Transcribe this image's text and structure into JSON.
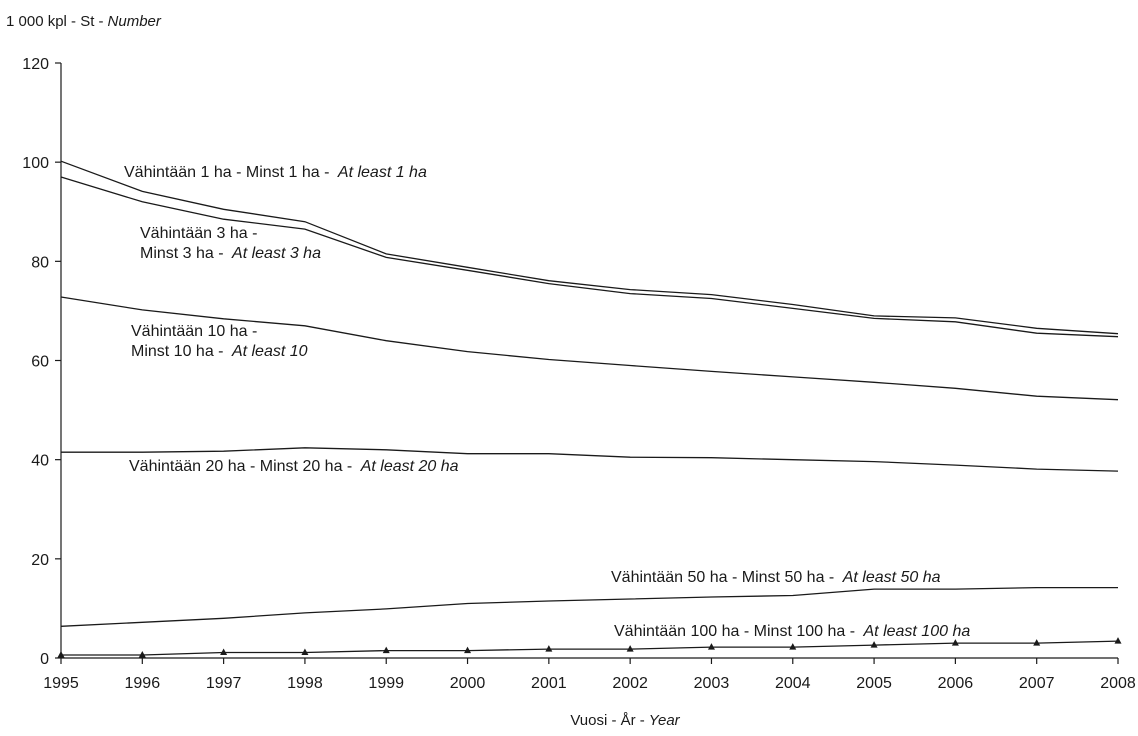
{
  "chart_data": {
    "type": "line",
    "ylabel": "1 000 kpl - St -",
    "ylabel_en": "Number",
    "xlabel": "Vuosi - År -",
    "xlabel_en": "Year",
    "ylim": [
      0,
      120
    ],
    "yticks": [
      "0",
      "20",
      "40",
      "60",
      "80",
      "100",
      "120"
    ],
    "x": [
      "1995",
      "1996",
      "1997",
      "1998",
      "1999",
      "2000",
      "2001",
      "2002",
      "2003",
      "2004",
      "2005",
      "2006",
      "2007",
      "2008"
    ],
    "grid": false,
    "series": [
      {
        "label": [
          "Vähintään 1 ha - Minst 1 ha - "
        ],
        "label_en": "At least 1 ha",
        "values": [
          100.2,
          94.1,
          90.5,
          88.0,
          81.5,
          78.8,
          76.1,
          74.3,
          73.3,
          71.3,
          69.0,
          68.6,
          66.5,
          65.4
        ]
      },
      {
        "label": [
          "Vähintään 3 ha -",
          "Minst 3 ha - "
        ],
        "label_en": "At least 3 ha",
        "values": [
          97.0,
          92.0,
          88.5,
          86.5,
          80.8,
          78.2,
          75.5,
          73.5,
          72.5,
          70.5,
          68.5,
          67.8,
          65.5,
          64.8
        ]
      },
      {
        "label": [
          "Vähintään 10 ha -",
          "Minst 10 ha - "
        ],
        "label_en": "At least 10",
        "values": [
          72.8,
          70.2,
          68.4,
          67.0,
          64.0,
          61.8,
          60.2,
          59.0,
          57.8,
          56.7,
          55.6,
          54.4,
          52.8,
          52.1
        ]
      },
      {
        "label": [
          "Vähintään 20 ha - Minst 20 ha - "
        ],
        "label_en": "At least 20 ha",
        "values": [
          41.5,
          41.5,
          41.7,
          42.4,
          42.0,
          41.2,
          41.2,
          40.5,
          40.4,
          40.0,
          39.6,
          38.9,
          38.1,
          37.7
        ]
      },
      {
        "label": [
          "Vähintään 50 ha - Minst 50 ha - "
        ],
        "label_en": "At least 50 ha",
        "values": [
          6.4,
          7.2,
          8.0,
          9.1,
          9.9,
          11.0,
          11.5,
          11.9,
          12.3,
          12.6,
          13.9,
          13.9,
          14.2,
          14.2
        ]
      },
      {
        "label": [
          "Vähintään 100 ha - Minst 100 ha - "
        ],
        "label_en": "At least 100 ha",
        "markers": "triangle",
        "values": [
          0.6,
          0.6,
          1.1,
          1.1,
          1.5,
          1.5,
          1.8,
          1.8,
          2.2,
          2.2,
          2.6,
          3.0,
          3.0,
          3.4
        ]
      }
    ]
  }
}
